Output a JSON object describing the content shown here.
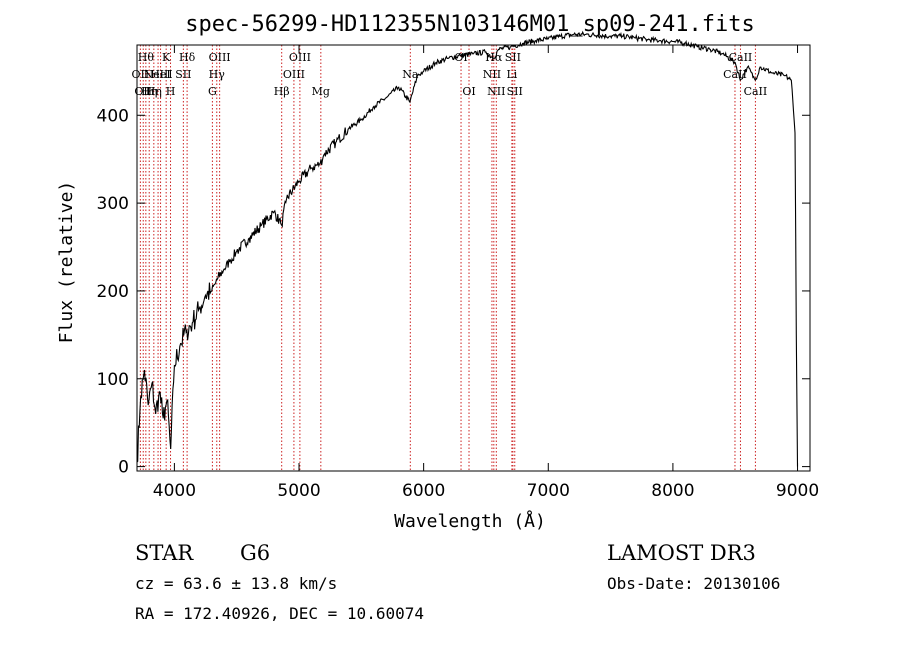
{
  "chart_data": {
    "type": "line",
    "title": "spec-56299-HD112355N103146M01_sp09-241.fits",
    "xlabel": "Wavelength (Å)",
    "ylabel": "Flux (relative)",
    "xlim": [
      3700,
      9100
    ],
    "ylim": [
      -5,
      480
    ],
    "xticks": [
      4000,
      5000,
      6000,
      7000,
      8000,
      9000
    ],
    "yticks": [
      0,
      100,
      200,
      300,
      400
    ],
    "series": [
      {
        "name": "spectrum",
        "x": [
          3700,
          3730,
          3760,
          3790,
          3820,
          3850,
          3880,
          3910,
          3940,
          3970,
          4000,
          4050,
          4100,
          4150,
          4200,
          4250,
          4300,
          4350,
          4400,
          4450,
          4500,
          4600,
          4700,
          4800,
          4860,
          4900,
          5000,
          5100,
          5170,
          5200,
          5300,
          5400,
          5500,
          5600,
          5700,
          5800,
          5890,
          5950,
          6000,
          6100,
          6200,
          6300,
          6400,
          6500,
          6560,
          6600,
          6700,
          6800,
          6900,
          7000,
          7100,
          7200,
          7300,
          7400,
          7500,
          7600,
          7700,
          7800,
          7900,
          8000,
          8100,
          8200,
          8300,
          8400,
          8500,
          8540,
          8600,
          8660,
          8700,
          8800,
          8900,
          8950,
          8980,
          8990,
          9000
        ],
        "values": [
          5,
          80,
          110,
          70,
          95,
          60,
          85,
          55,
          75,
          20,
          115,
          140,
          155,
          165,
          180,
          195,
          200,
          215,
          225,
          235,
          245,
          260,
          275,
          290,
          275,
          305,
          325,
          340,
          345,
          355,
          370,
          385,
          395,
          410,
          420,
          432,
          415,
          445,
          450,
          460,
          465,
          468,
          470,
          472,
          465,
          475,
          478,
          482,
          485,
          487,
          490,
          492,
          492,
          491,
          490,
          490,
          488,
          486,
          485,
          484,
          482,
          478,
          475,
          470,
          460,
          440,
          455,
          440,
          455,
          448,
          445,
          440,
          380,
          150,
          0
        ]
      }
    ],
    "lines": [
      {
        "wave": 3727,
        "label": "OII",
        "row": 2
      },
      {
        "wave": 3750,
        "label": "OII",
        "row": 3
      },
      {
        "wave": 3771,
        "label": "Hθ",
        "row": 1
      },
      {
        "wave": 3798,
        "label": "Hη",
        "row": 3
      },
      {
        "wave": 3835,
        "label": "Hη",
        "row": 3
      },
      {
        "wave": 3869,
        "label": "NeIII",
        "row": 2
      },
      {
        "wave": 3889,
        "label": "HeI",
        "row": 2
      },
      {
        "wave": 3934,
        "label": "K",
        "row": 1
      },
      {
        "wave": 3969,
        "label": "H",
        "row": 3
      },
      {
        "wave": 4072,
        "label": "SII",
        "row": 2
      },
      {
        "wave": 4102,
        "label": "Hδ",
        "row": 1
      },
      {
        "wave": 4305,
        "label": "G",
        "row": 3
      },
      {
        "wave": 4340,
        "label": "Hγ",
        "row": 2
      },
      {
        "wave": 4363,
        "label": "OIII",
        "row": 1
      },
      {
        "wave": 4861,
        "label": "Hβ",
        "row": 3
      },
      {
        "wave": 4959,
        "label": "OIII",
        "row": 2
      },
      {
        "wave": 5007,
        "label": "OIII",
        "row": 1
      },
      {
        "wave": 5175,
        "label": "Mg",
        "row": 3
      },
      {
        "wave": 5893,
        "label": "Na",
        "row": 2
      },
      {
        "wave": 6300,
        "label": "OI",
        "row": 1
      },
      {
        "wave": 6364,
        "label": "OI",
        "row": 3
      },
      {
        "wave": 6548,
        "label": "NII",
        "row": 2
      },
      {
        "wave": 6563,
        "label": "Hα",
        "row": 1
      },
      {
        "wave": 6583,
        "label": "NII",
        "row": 3
      },
      {
        "wave": 6708,
        "label": "Li",
        "row": 2
      },
      {
        "wave": 6716,
        "label": "SII",
        "row": 1
      },
      {
        "wave": 6731,
        "label": "SII",
        "row": 3
      },
      {
        "wave": 8498,
        "label": "CaII",
        "row": 2
      },
      {
        "wave": 8542,
        "label": "CaII",
        "row": 1
      },
      {
        "wave": 8662,
        "label": "CaII",
        "row": 3
      }
    ]
  },
  "info": {
    "object_class": "STAR",
    "subclass": "G6",
    "survey": "LAMOST DR3",
    "redshift": "cz = 63.6 ± 13.8 km/s",
    "obs_date": "Obs-Date: 20130106",
    "coords": "RA = 172.40926, DEC =  10.60074"
  },
  "colors": {
    "line_marker": "#cc2222",
    "spectrum": "#000000"
  }
}
